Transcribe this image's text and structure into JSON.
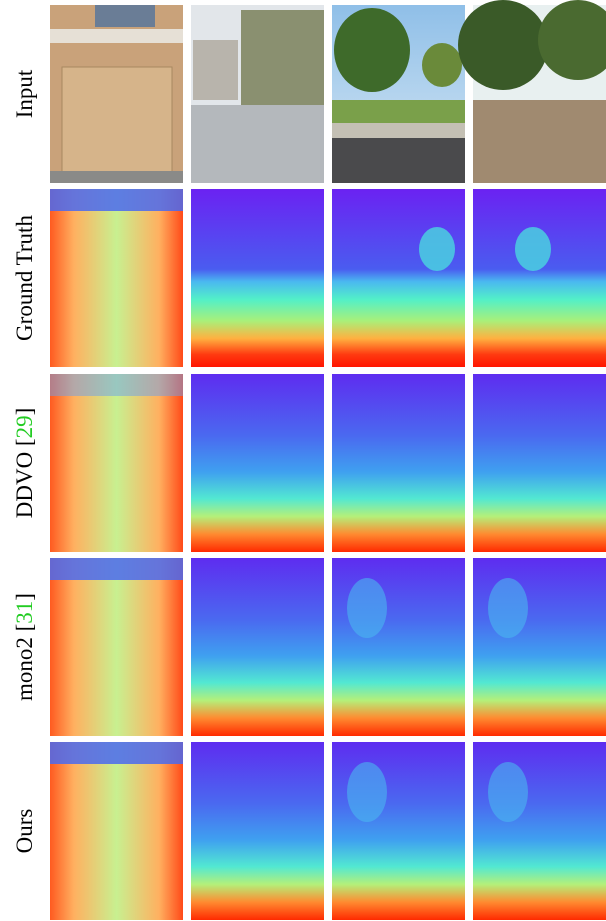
{
  "rows": [
    {
      "label_parts": [
        "Input"
      ]
    },
    {
      "label_parts": [
        "Ground Truth"
      ]
    },
    {
      "label_parts": [
        "DDVO [",
        "29",
        "]"
      ]
    },
    {
      "label_parts": [
        "mono2 [",
        "31",
        "]"
      ]
    },
    {
      "label_parts": [
        "Ours"
      ]
    }
  ]
}
